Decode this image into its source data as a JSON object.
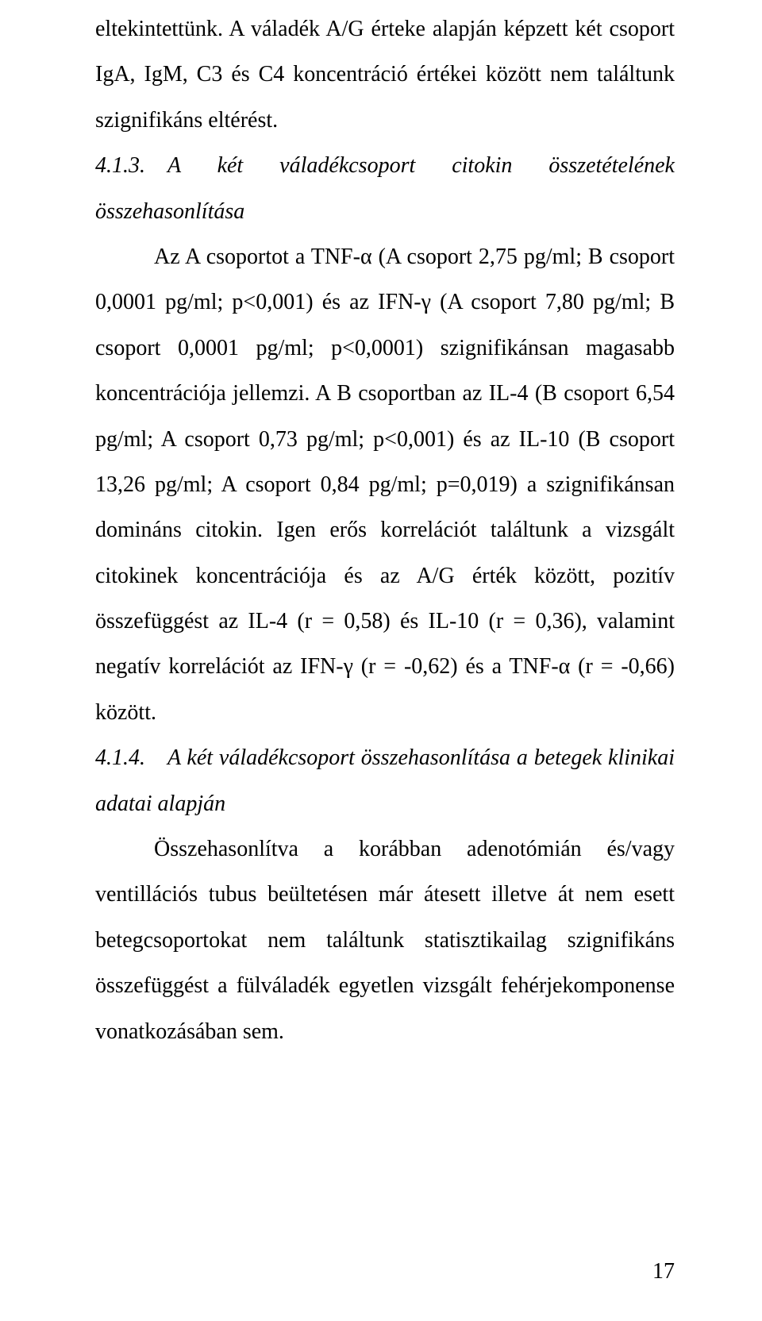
{
  "p1": "eltekintettünk. A váladék A/G érteke alapján képzett két csoport IgA, IgM, C3 és C4 koncentráció értékei között nem találtunk szignifikáns eltérést.",
  "h1": "4.1.3. A két váladékcsoport citokin összetételének összehasonlítása",
  "p2": "Az A csoportot a TNF-α (A csoport 2,75 pg/ml; B csoport 0,0001 pg/ml; p<0,001) és az IFN-γ (A csoport 7,80 pg/ml; B csoport 0,0001 pg/ml; p<0,0001) szignifikánsan magasabb koncentrációja jellemzi. A B csoportban az IL-4 (B csoport 6,54 pg/ml; A csoport 0,73 pg/ml; p<0,001) és az IL-10 (B csoport 13,26 pg/ml; A csoport 0,84 pg/ml; p=0,019) a szignifikánsan domináns citokin. Igen erős korrelációt találtunk a vizsgált citokinek koncentrációja és az A/G érték között, pozitív összefüggést az IL-4 (r = 0,58) és IL-10 (r = 0,36), valamint negatív korrelációt az IFN-γ (r = -0,62) és a TNF-α (r = -0,66) között.",
  "h2": "4.1.4. A két váladékcsoport összehasonlítása a betegek klinikai adatai alapján",
  "p3": "Összehasonlítva a korábban adenotómián és/vagy ventillációs tubus beültetésen már átesett illetve át nem esett betegcsoportokat nem találtunk statisztikailag szignifikáns összefüggést a fülváladék egyetlen vizsgált fehérjekomponense vonatkozásában sem.",
  "page_number": "17"
}
